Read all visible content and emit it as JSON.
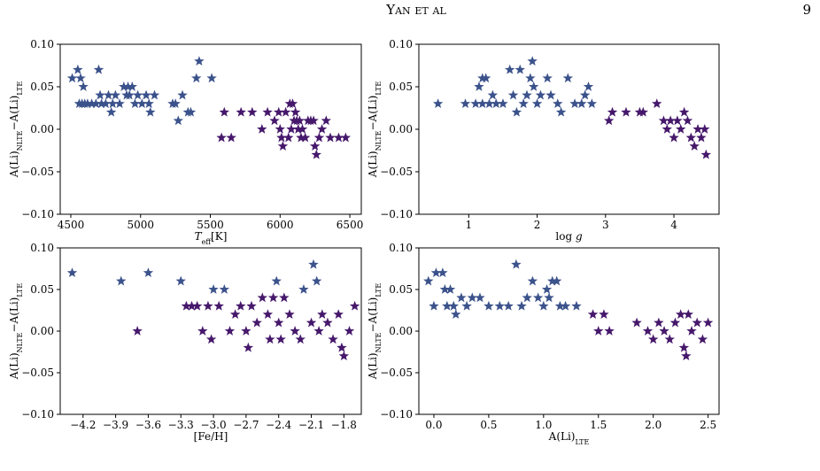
{
  "header": {
    "running_title": "Yan et al",
    "page_number": "9"
  },
  "chart_data": [
    {
      "type": "scatter",
      "marker": "star",
      "xlim": [
        4424,
        6582
      ],
      "ylim": [
        -0.1,
        0.1
      ],
      "xticks": [
        4500,
        5000,
        5500,
        6000,
        6500
      ],
      "yticks": [
        {
          "value": 0.1,
          "label": "0.10"
        },
        {
          "value": 0.05,
          "label": "0.05"
        },
        {
          "value": 0,
          "label": "0.00"
        },
        {
          "value": -0.05,
          "label": "−0.05"
        },
        {
          "value": -0.1,
          "label": "−0.10"
        }
      ],
      "xlabel": [
        {
          "text": "T",
          "italic": true
        },
        {
          "text": "eff",
          "sub": true
        },
        {
          "text": "[K]"
        }
      ],
      "ylabel": [
        {
          "text": "A(Li)"
        },
        {
          "text": "NLTE",
          "sub": true
        },
        {
          "text": "−A(Li)"
        },
        {
          "text": "LTE",
          "sub": true
        }
      ],
      "series": [
        {
          "color": "#3b528b",
          "x": [
            4510,
            4550,
            4570,
            4590,
            4560,
            4580,
            4600,
            4620,
            4650,
            4680,
            4700,
            4710,
            4720,
            4750,
            4770,
            4790,
            4800,
            4820,
            4850,
            4880,
            4900,
            4910,
            4920,
            4940,
            4960,
            4980,
            5010,
            5040,
            5060,
            5070,
            5100,
            5230,
            5250,
            5270,
            5300,
            5340,
            5360,
            5400,
            5420,
            5510
          ],
          "values": [
            0.06,
            0.07,
            0.06,
            0.05,
            0.03,
            0.03,
            0.03,
            0.03,
            0.03,
            0.03,
            0.07,
            0.04,
            0.03,
            0.03,
            0.04,
            0.02,
            0.03,
            0.04,
            0.03,
            0.05,
            0.04,
            0.05,
            0.04,
            0.05,
            0.03,
            0.04,
            0.03,
            0.04,
            0.03,
            0.02,
            0.04,
            0.03,
            0.03,
            0.01,
            0.04,
            0.02,
            0.02,
            0.06,
            0.08,
            0.06
          ]
        },
        {
          "color": "#46186b",
          "x": [
            5580,
            5600,
            5650,
            5720,
            5800,
            5870,
            5910,
            5960,
            5990,
            6000,
            6010,
            6020,
            6040,
            6060,
            6070,
            6080,
            6090,
            6100,
            6110,
            6120,
            6130,
            6140,
            6150,
            6160,
            6180,
            6200,
            6220,
            6240,
            6250,
            6260,
            6280,
            6300,
            6330,
            6360,
            6420,
            6470
          ],
          "values": [
            -0.01,
            0.02,
            -0.01,
            0.02,
            0.02,
            0,
            0.02,
            0.01,
            0.02,
            0,
            -0.01,
            -0.02,
            0.02,
            -0.01,
            0.03,
            0,
            0.03,
            0.01,
            0.02,
            0.01,
            0,
            0.01,
            -0.01,
            0,
            -0.01,
            0.01,
            0.01,
            0.01,
            -0.02,
            -0.03,
            -0.01,
            0,
            0.01,
            -0.01,
            -0.01,
            -0.01
          ]
        }
      ]
    },
    {
      "type": "scatter",
      "marker": "star",
      "xlim": [
        0.27,
        4.66
      ],
      "ylim": [
        -0.1,
        0.1
      ],
      "xticks": [
        1,
        2,
        3,
        4
      ],
      "yticks": [
        {
          "value": 0.1,
          "label": "0.10"
        },
        {
          "value": 0.05,
          "label": "0.05"
        },
        {
          "value": 0,
          "label": "0.00"
        },
        {
          "value": -0.05,
          "label": "−0.05"
        },
        {
          "value": -0.1,
          "label": "−0.10"
        }
      ],
      "xlabel": [
        {
          "text": "log "
        },
        {
          "text": "g",
          "italic": true
        }
      ],
      "ylabel": [
        {
          "text": "A(Li)"
        },
        {
          "text": "NLTE",
          "sub": true
        },
        {
          "text": "−A(Li)"
        },
        {
          "text": "LTE",
          "sub": true
        }
      ],
      "series": [
        {
          "color": "#3b528b",
          "x": [
            0.55,
            0.95,
            1.1,
            1.15,
            1.2,
            1.25,
            1.2,
            1.3,
            1.35,
            1.4,
            1.5,
            1.6,
            1.65,
            1.7,
            1.75,
            1.8,
            1.85,
            1.9,
            1.93,
            1.95,
            2.0,
            2.05,
            2.15,
            2.2,
            2.3,
            2.35,
            2.45,
            2.55,
            2.65,
            2.7,
            2.75,
            2.8
          ],
          "values": [
            0.03,
            0.03,
            0.03,
            0.05,
            0.06,
            0.06,
            0.03,
            0.03,
            0.04,
            0.03,
            0.03,
            0.07,
            0.04,
            0.02,
            0.07,
            0.03,
            0.04,
            0.06,
            0.08,
            0.05,
            0.03,
            0.04,
            0.06,
            0.04,
            0.03,
            0.02,
            0.06,
            0.03,
            0.03,
            0.04,
            0.05,
            0.03
          ]
        },
        {
          "color": "#46186b",
          "x": [
            3.05,
            3.1,
            3.3,
            3.5,
            3.55,
            3.75,
            3.85,
            3.9,
            3.95,
            4.0,
            4.05,
            4.1,
            4.15,
            4.2,
            4.25,
            4.3,
            4.35,
            4.4,
            4.45,
            4.47
          ],
          "values": [
            0.01,
            0.02,
            0.02,
            0.02,
            0.02,
            0.03,
            0.01,
            0,
            0.01,
            -0.01,
            0.01,
            0,
            0.02,
            0.01,
            -0.01,
            -0.02,
            0,
            -0.01,
            0,
            -0.03
          ]
        }
      ]
    },
    {
      "type": "scatter",
      "marker": "star",
      "xlim": [
        -4.41,
        -1.64
      ],
      "ylim": [
        -0.1,
        0.1
      ],
      "xticks": [
        {
          "value": -4.2,
          "label": "−4.2"
        },
        {
          "value": -3.9,
          "label": "−3.9"
        },
        {
          "value": -3.6,
          "label": "−3.6"
        },
        {
          "value": -3.3,
          "label": "−3.3"
        },
        {
          "value": -3.0,
          "label": "−3.0"
        },
        {
          "value": -2.7,
          "label": "−2.7"
        },
        {
          "value": -2.4,
          "label": "−2.4"
        },
        {
          "value": -2.1,
          "label": "−2.1"
        },
        {
          "value": -1.8,
          "label": "−1.8"
        }
      ],
      "yticks": [
        {
          "value": 0.1,
          "label": "0.10"
        },
        {
          "value": 0.05,
          "label": "0.05"
        },
        {
          "value": 0,
          "label": "0.00"
        },
        {
          "value": -0.05,
          "label": "−0.05"
        },
        {
          "value": -0.1,
          "label": "−0.10"
        }
      ],
      "xlabel": [
        {
          "text": "[Fe/H]"
        }
      ],
      "ylabel": [
        {
          "text": "A(Li)"
        },
        {
          "text": "NLTE",
          "sub": true
        },
        {
          "text": "−A(Li)"
        },
        {
          "text": "LTE",
          "sub": true
        }
      ],
      "series": [
        {
          "color": "#3b528b",
          "x": [
            -4.3,
            -3.85,
            -3.6,
            -3.3,
            -3.0,
            -2.9,
            -2.42,
            -2.17,
            -2.08,
            -2.05
          ],
          "values": [
            0.07,
            0.06,
            0.07,
            0.06,
            0.05,
            0.05,
            0.06,
            0.05,
            0.08,
            0.06
          ]
        },
        {
          "color": "#46186b",
          "x": [
            -3.7,
            -3.25,
            -3.2,
            -3.15,
            -3.1,
            -3.05,
            -3.02,
            -2.95,
            -2.85,
            -2.8,
            -2.75,
            -2.7,
            -2.68,
            -2.65,
            -2.6,
            -2.55,
            -2.5,
            -2.48,
            -2.45,
            -2.4,
            -2.38,
            -2.35,
            -2.3,
            -2.25,
            -2.2,
            -2.1,
            -2.03,
            -2.0,
            -1.95,
            -1.9,
            -1.85,
            -1.82,
            -1.8,
            -1.75,
            -1.7
          ],
          "values": [
            0,
            0.03,
            0.03,
            0.03,
            0,
            0.03,
            -0.01,
            0.03,
            0,
            0.02,
            0.03,
            0,
            -0.02,
            0.03,
            0.01,
            0.04,
            0.02,
            -0.01,
            0.04,
            0.01,
            -0.01,
            0.04,
            0.02,
            0,
            -0.01,
            0.01,
            0,
            0.02,
            0.01,
            -0.01,
            0.02,
            -0.02,
            -0.03,
            0,
            0.03
          ]
        }
      ]
    },
    {
      "type": "scatter",
      "marker": "star",
      "xlim": [
        -0.137,
        2.6
      ],
      "ylim": [
        -0.1,
        0.1
      ],
      "xticks": [
        {
          "value": 0,
          "label": "0.0"
        },
        0.5,
        {
          "value": 1,
          "label": "1.0"
        },
        1.5,
        {
          "value": 2,
          "label": "2.0"
        },
        2.5
      ],
      "yticks": [
        {
          "value": 0.1,
          "label": "0.10"
        },
        {
          "value": 0.05,
          "label": "0.05"
        },
        {
          "value": 0,
          "label": "0.00"
        },
        {
          "value": -0.05,
          "label": "−0.05"
        },
        {
          "value": -0.1,
          "label": "−0.10"
        }
      ],
      "xlabel": [
        {
          "text": "A(Li)"
        },
        {
          "text": "LTE",
          "sub": true
        }
      ],
      "ylabel": [
        {
          "text": "A(Li)"
        },
        {
          "text": "NLTE",
          "sub": true
        },
        {
          "text": "−A(Li)"
        },
        {
          "text": "LTE",
          "sub": true
        }
      ],
      "series": [
        {
          "color": "#3b528b",
          "x": [
            -0.05,
            0.0,
            0.02,
            0.08,
            0.1,
            0.12,
            0.15,
            0.18,
            0.2,
            0.25,
            0.3,
            0.35,
            0.42,
            0.5,
            0.6,
            0.68,
            0.75,
            0.8,
            0.85,
            0.9,
            0.95,
            1.0,
            1.03,
            1.05,
            1.08,
            1.12,
            1.15,
            1.2,
            1.3
          ],
          "values": [
            0.06,
            0.03,
            0.07,
            0.07,
            0.05,
            0.03,
            0.05,
            0.03,
            0.02,
            0.04,
            0.03,
            0.04,
            0.04,
            0.03,
            0.03,
            0.03,
            0.08,
            0.03,
            0.04,
            0.06,
            0.04,
            0.03,
            0.05,
            0.04,
            0.06,
            0.06,
            0.03,
            0.03,
            0.03
          ]
        },
        {
          "color": "#46186b",
          "x": [
            1.45,
            1.5,
            1.55,
            1.6,
            1.85,
            1.95,
            2.0,
            2.05,
            2.1,
            2.15,
            2.2,
            2.25,
            2.28,
            2.3,
            2.32,
            2.35,
            2.4,
            2.45,
            2.5
          ],
          "values": [
            0.02,
            0,
            0.02,
            0,
            0.01,
            0,
            -0.01,
            0.01,
            0,
            -0.01,
            0.01,
            0.02,
            -0.02,
            -0.03,
            0.02,
            0,
            0.01,
            -0.01,
            0.01
          ]
        }
      ]
    }
  ]
}
